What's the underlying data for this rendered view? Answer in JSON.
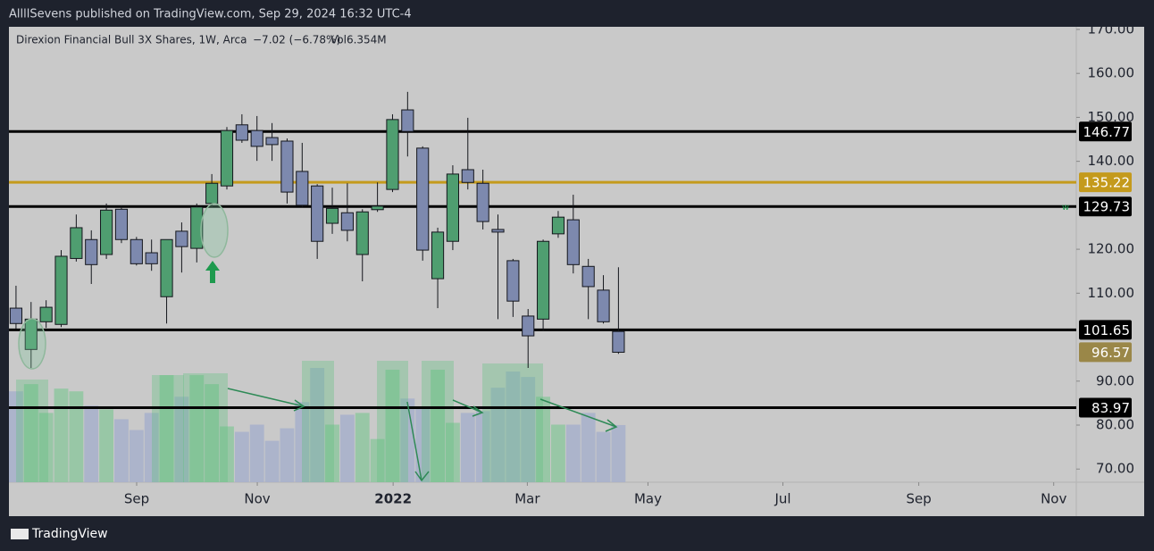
{
  "chart_data": {
    "type": "candlestick",
    "publisher": "AllllSevens published on TradingView.com, Sep 29, 2024 16:32 UTC-4",
    "title": "Direxion Financial Bull 3X Shares, 1W, Arca",
    "change": "−7.02 (−6.78%)",
    "volume_label": "Vol6.354M",
    "footer": "TradingView",
    "flag": "w",
    "x": [
      0,
      1,
      2,
      3,
      4,
      5,
      6,
      7,
      8,
      9,
      10,
      11,
      12,
      13,
      14,
      15,
      16,
      17,
      18,
      19,
      20,
      21,
      22,
      23,
      24,
      25,
      26,
      27,
      28,
      29,
      30,
      31,
      32,
      33,
      34,
      35,
      36,
      37,
      38,
      39,
      40
    ],
    "open": [
      106.6,
      97.2,
      103.5,
      102.9,
      117.9,
      122.2,
      118.8,
      129.1,
      122.2,
      119.2,
      109.2,
      124.1,
      120.2,
      130.4,
      134.4,
      148.3,
      147.0,
      145.4,
      144.6,
      137.7,
      134.4,
      125.9,
      128.3,
      118.8,
      129.0,
      133.6,
      151.7,
      143.0,
      113.3,
      121.8,
      138.1,
      135.0,
      124.5,
      117.4,
      104.8,
      104.1,
      123.5,
      126.7,
      116.1,
      110.7,
      101.3
    ],
    "high": [
      111.7,
      108.0,
      108.4,
      119.8,
      127.9,
      124.3,
      130.4,
      130.0,
      122.8,
      122.2,
      122.2,
      126.1,
      130.4,
      137.1,
      147.8,
      150.7,
      150.3,
      148.7,
      145.2,
      144.2,
      134.8,
      134.0,
      135.0,
      129.1,
      135.2,
      150.7,
      155.8,
      143.4,
      124.9,
      139.1,
      149.9,
      138.1,
      127.9,
      117.8,
      106.4,
      122.2,
      128.7,
      132.4,
      117.8,
      114.1,
      115.9
    ],
    "low": [
      101.9,
      93.0,
      102.1,
      102.3,
      117.2,
      112.1,
      117.8,
      121.4,
      116.3,
      115.1,
      103.1,
      114.7,
      117.0,
      129.6,
      133.6,
      144.2,
      140.1,
      140.1,
      130.4,
      129.6,
      117.8,
      123.5,
      121.8,
      112.7,
      128.5,
      133.0,
      141.1,
      117.4,
      106.6,
      119.8,
      133.6,
      124.5,
      104.1,
      104.6,
      93.0,
      101.5,
      122.6,
      114.5,
      104.1,
      103.1,
      96.2
    ],
    "close": [
      103.1,
      104.1,
      106.8,
      118.4,
      124.9,
      116.5,
      128.9,
      122.2,
      116.7,
      116.7,
      122.2,
      120.6,
      129.6,
      135.0,
      147.0,
      144.8,
      143.4,
      143.8,
      133.0,
      130.0,
      121.8,
      129.3,
      124.3,
      128.5,
      129.8,
      149.5,
      146.8,
      119.8,
      123.9,
      137.1,
      135.2,
      126.3,
      123.9,
      108.2,
      100.3,
      121.8,
      127.3,
      116.5,
      111.5,
      103.5,
      96.57
    ],
    "volume": [
      10.1,
      10.9,
      7.7,
      10.4,
      10.1,
      8.5,
      8.1,
      7.0,
      5.8,
      7.7,
      11.9,
      9.5,
      11.9,
      10.9,
      6.2,
      5.6,
      6.4,
      4.6,
      6.0,
      8.9,
      12.7,
      6.4,
      7.5,
      7.7,
      4.8,
      12.5,
      9.3,
      8.3,
      12.5,
      6.6,
      7.7,
      7.9,
      10.5,
      12.3,
      11.7,
      9.5,
      6.4,
      6.4,
      7.7,
      5.6,
      6.354
    ],
    "up_color": "#4f9e70",
    "down_color": "#7d89ae",
    "volume_up_color": "#8fc7a0",
    "volume_down_color": "#a7b0cb",
    "last_price_color": "#9a8748",
    "levels": [
      {
        "value": 146.77,
        "color": "#000000"
      },
      {
        "value": 135.22,
        "color": "#c49a1c"
      },
      {
        "value": 129.73,
        "color": "#000000"
      },
      {
        "value": 101.65,
        "color": "#000000"
      },
      {
        "value": 83.97,
        "color": "#000000"
      }
    ],
    "xlim": [
      -0.47,
      70.4
    ],
    "xticks": [
      {
        "value": 8.01,
        "label": "Sep"
      },
      {
        "value": 16.02,
        "label": "Nov"
      },
      {
        "value": 25.04,
        "label": "2022"
      },
      {
        "value": 33.95,
        "label": "Mar"
      },
      {
        "value": 41.96,
        "label": "May"
      },
      {
        "value": 50.92,
        "label": "Jul"
      },
      {
        "value": 59.94,
        "label": "Sep"
      },
      {
        "value": 68.9,
        "label": "Nov"
      }
    ],
    "ylim": [
      67.0,
      170.6
    ],
    "yticks": [
      {
        "value": 70,
        "label": "70.00"
      },
      {
        "value": 80,
        "label": "80.00"
      },
      {
        "value": 90,
        "label": "90.00"
      },
      {
        "value": 110,
        "label": "110.00"
      },
      {
        "value": 120,
        "label": "120.00"
      },
      {
        "value": 140,
        "label": "140.00"
      },
      {
        "value": 150,
        "label": "150.00"
      },
      {
        "value": 160,
        "label": "160.00"
      },
      {
        "value": 170,
        "label": "170.00"
      }
    ]
  }
}
